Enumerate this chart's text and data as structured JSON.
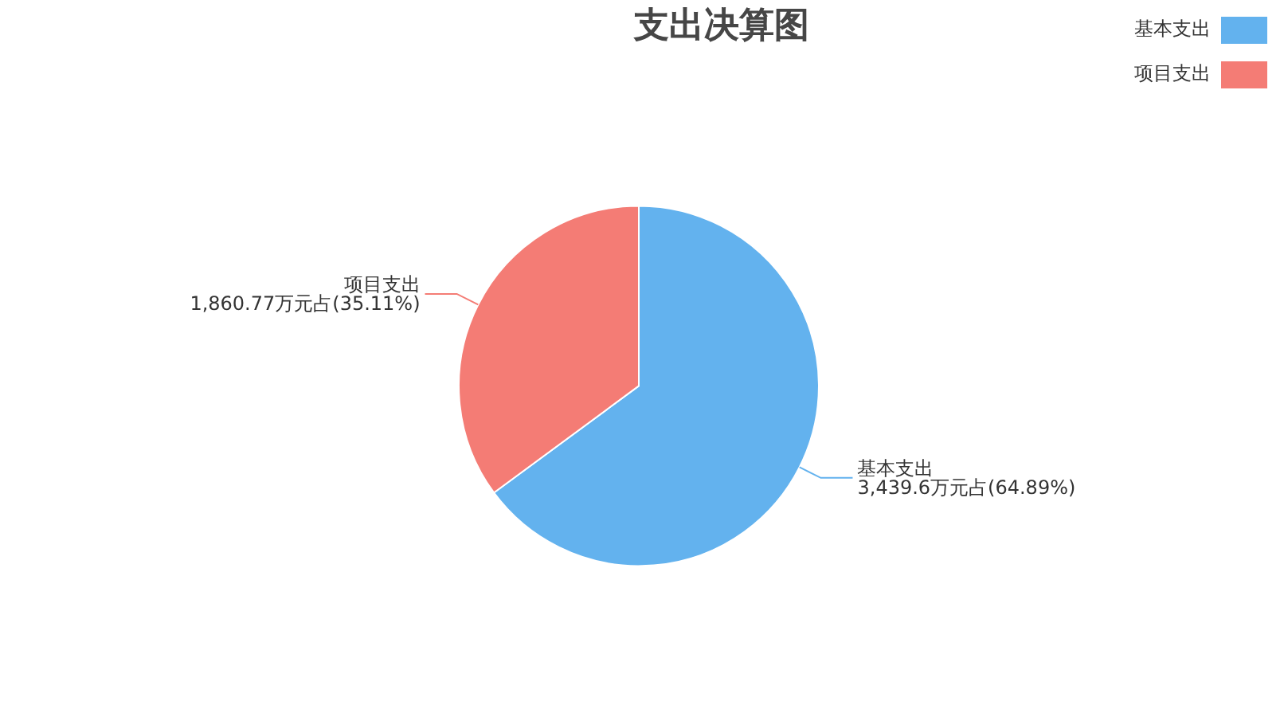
{
  "chart_data": {
    "type": "pie",
    "title": "支出决算图",
    "categories": [
      "基本支出",
      "项目支出"
    ],
    "values": [
      3439.6,
      1860.77
    ],
    "colors": [
      "#63b2ee",
      "#f47c75"
    ],
    "value_labels": [
      "3,439.6万元占(64.89%)",
      "1,860.77万元占(35.11%)"
    ],
    "legend": "top right"
  }
}
